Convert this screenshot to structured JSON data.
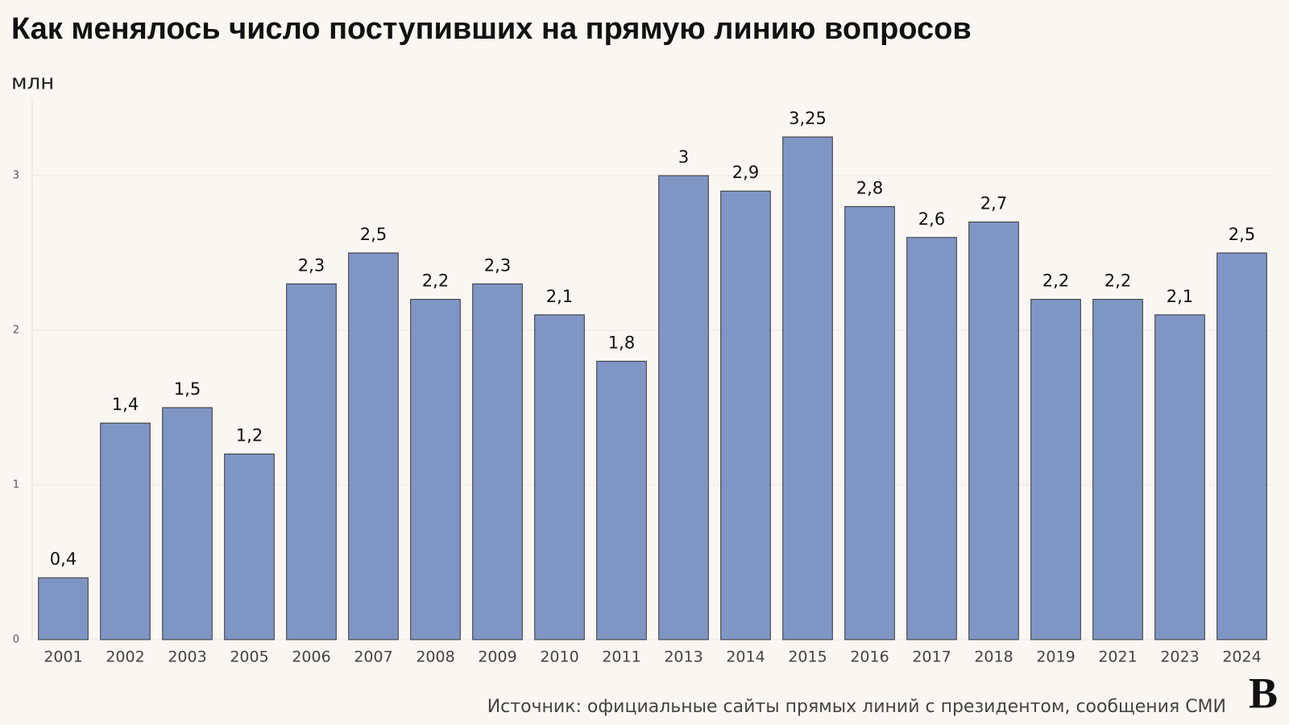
{
  "chart_data": {
    "type": "bar",
    "title": "Как менялось число поступивших на прямую линию вопросов",
    "unit": "млн",
    "source": "Источник: официальные сайты прямых линий с президентом, сообщения СМИ",
    "logo": "В",
    "categories": [
      "2001",
      "2002",
      "2003",
      "2005",
      "2006",
      "2007",
      "2008",
      "2009",
      "2010",
      "2011",
      "2013",
      "2014",
      "2015",
      "2016",
      "2017",
      "2018",
      "2019",
      "2021",
      "2023",
      "2024"
    ],
    "values": [
      0.4,
      1.4,
      1.5,
      1.2,
      2.3,
      2.5,
      2.2,
      2.3,
      2.1,
      1.8,
      3,
      2.9,
      3.25,
      2.8,
      2.6,
      2.7,
      2.2,
      2.2,
      2.1,
      2.5
    ],
    "value_labels": [
      "0,4",
      "1,4",
      "1,5",
      "1,2",
      "2,3",
      "2,5",
      "2,2",
      "2,3",
      "2,1",
      "1,8",
      "3",
      "2,9",
      "3,25",
      "2,8",
      "2,6",
      "2,7",
      "2,2",
      "2,2",
      "2,1",
      "2,5"
    ],
    "color": "#7f96c5",
    "ylim": [
      0,
      3.5
    ],
    "yticks": [
      0,
      1,
      2,
      3
    ],
    "grid": true
  }
}
